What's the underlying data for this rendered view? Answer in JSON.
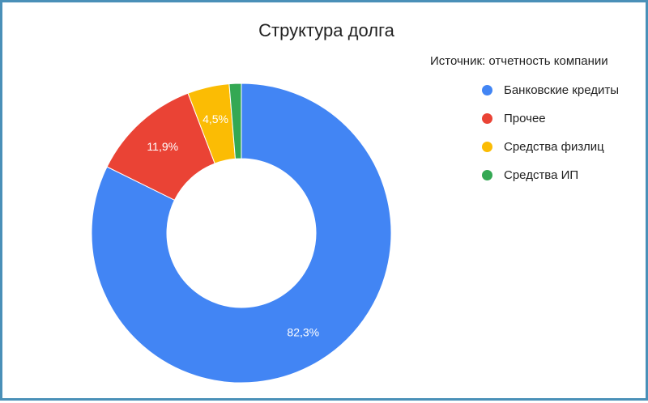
{
  "chart_data": {
    "type": "pie",
    "title": "Структура долга",
    "legend_title": "Источник: отчетность компании",
    "legend_position": "right",
    "donut": true,
    "categories": [
      "Банковские кредиты",
      "Прочее",
      "Средства физлиц",
      "Средства ИП"
    ],
    "values": [
      82.3,
      11.9,
      4.5,
      1.3
    ],
    "data_labels": [
      "82,3%",
      "11,9%",
      "4,5%",
      ""
    ],
    "colors": [
      "#4285f4",
      "#ea4335",
      "#fbbc04",
      "#34a853"
    ]
  }
}
